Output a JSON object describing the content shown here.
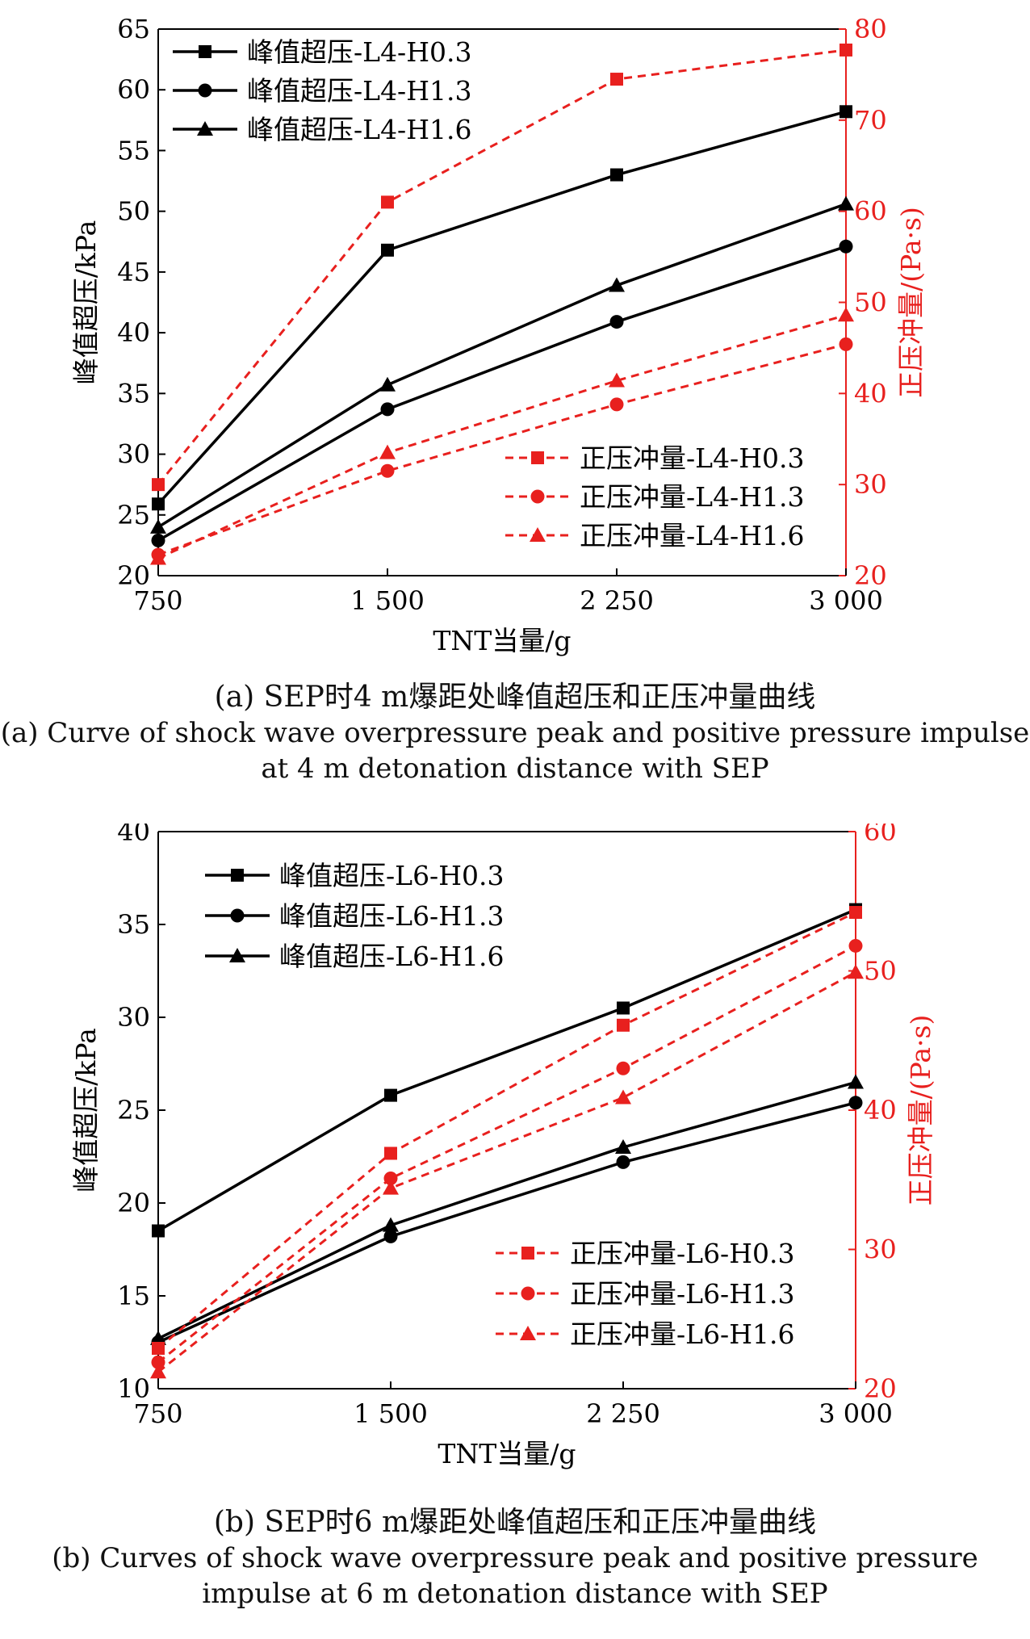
{
  "colors": {
    "black": "#000000",
    "red": "#e8201e"
  },
  "captions": {
    "a_zh": "(a) SEP时4 m爆距处峰值超压和正压冲量曲线",
    "a_en": "(a) Curve of  shock wave overpressure peak and positive pressure impulse at 4 m detonation distance with SEP",
    "b_zh": "(b) SEP时6 m爆距处峰值超压和正压冲量曲线",
    "b_en": "(b) Curves of shock wave overpressure peak and positive pressure impulse at 6 m detonation distance with SEP"
  },
  "chart_data": [
    {
      "type": "line",
      "xlabel": "TNT当量/g",
      "ylabel": "峰值超压/kPa",
      "y2label": "正压冲量/(Pa·s)",
      "x": [
        750,
        1500,
        2250,
        3000
      ],
      "x_tick_labels": [
        "750",
        "1 500",
        "2 250",
        "3 000"
      ],
      "ylim": [
        20,
        65
      ],
      "y_ticks": [
        20,
        25,
        30,
        35,
        40,
        45,
        50,
        55,
        60,
        65
      ],
      "y2lim": [
        20,
        80
      ],
      "y2_ticks": [
        20,
        30,
        40,
        50,
        60,
        70,
        80
      ],
      "legend_left": "top-left",
      "legend_right": "bottom-right",
      "series": [
        {
          "name": "峰值超压-L4-H0.3",
          "axis": "left",
          "marker": "square",
          "dash": false,
          "values": [
            25.9,
            46.8,
            53.0,
            58.2
          ]
        },
        {
          "name": "峰值超压-L4-H1.3",
          "axis": "left",
          "marker": "circle",
          "dash": false,
          "values": [
            22.9,
            33.7,
            40.9,
            47.1
          ]
        },
        {
          "name": "峰值超压-L4-H1.6",
          "axis": "left",
          "marker": "triangle",
          "dash": false,
          "values": [
            24.0,
            35.7,
            43.9,
            50.6
          ]
        },
        {
          "name": "正压冲量-L4-H0.3",
          "axis": "right",
          "marker": "square",
          "dash": true,
          "values": [
            30.0,
            61.0,
            74.5,
            77.7
          ]
        },
        {
          "name": "正压冲量-L4-H1.3",
          "axis": "right",
          "marker": "circle",
          "dash": true,
          "values": [
            22.3,
            31.5,
            38.8,
            45.4
          ]
        },
        {
          "name": "正压冲量-L4-H1.6",
          "axis": "right",
          "marker": "triangle",
          "dash": true,
          "values": [
            21.9,
            33.5,
            41.4,
            48.6
          ]
        }
      ]
    },
    {
      "type": "line",
      "xlabel": "TNT当量/g",
      "ylabel": "峰值超压/kPa",
      "y2label": "正压冲量/(Pa·s)",
      "x": [
        750,
        1500,
        2250,
        3000
      ],
      "x_tick_labels": [
        "750",
        "1 500",
        "2 250",
        "3 000"
      ],
      "ylim": [
        10,
        40
      ],
      "y_ticks": [
        10,
        15,
        20,
        25,
        30,
        35,
        40
      ],
      "y2lim": [
        20,
        60
      ],
      "y2_ticks": [
        20,
        30,
        40,
        50,
        60
      ],
      "legend_left": "top-left",
      "legend_right": "bottom-right",
      "series": [
        {
          "name": "峰值超压-L6-H0.3",
          "axis": "left",
          "marker": "square",
          "dash": false,
          "values": [
            18.5,
            25.8,
            30.5,
            35.8
          ]
        },
        {
          "name": "峰值超压-L6-H1.3",
          "axis": "left",
          "marker": "circle",
          "dash": false,
          "values": [
            12.5,
            18.2,
            22.2,
            25.4
          ]
        },
        {
          "name": "峰值超压-L6-H1.6",
          "axis": "left",
          "marker": "triangle",
          "dash": false,
          "values": [
            12.7,
            18.8,
            23.0,
            26.5
          ]
        },
        {
          "name": "正压冲量-L6-H0.3",
          "axis": "right",
          "marker": "square",
          "dash": true,
          "values": [
            22.9,
            36.9,
            46.1,
            54.2
          ]
        },
        {
          "name": "正压冲量-L6-H1.3",
          "axis": "right",
          "marker": "circle",
          "dash": true,
          "values": [
            21.9,
            35.1,
            43.0,
            51.8
          ]
        },
        {
          "name": "正压冲量-L6-H1.6",
          "axis": "right",
          "marker": "triangle",
          "dash": true,
          "values": [
            21.2,
            34.4,
            40.9,
            49.9
          ]
        }
      ]
    }
  ]
}
